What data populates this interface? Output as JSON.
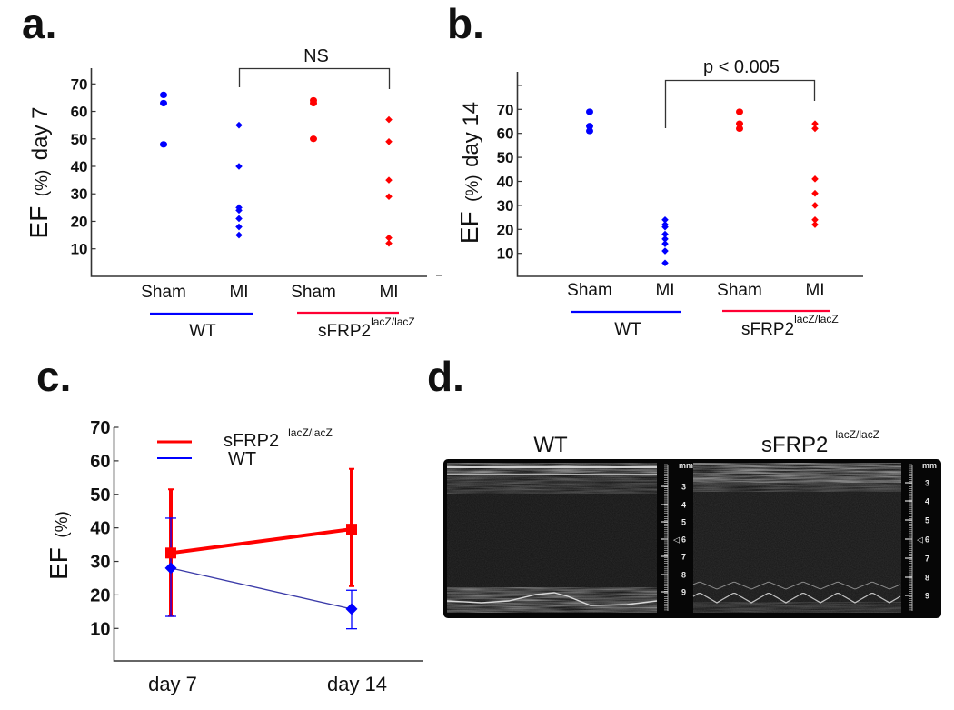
{
  "colors": {
    "wt": "#0000ff",
    "ko": "#ff0000",
    "axis": "#333333",
    "wt_line_c": "#3a3aa8"
  },
  "panels": {
    "a": {
      "letter": "a.",
      "ylabel_main": "EF",
      "ylabel_unit": "(%)",
      "ylabel_day": "day 7",
      "significance": "NS"
    },
    "b": {
      "letter": "b.",
      "ylabel_main": "EF",
      "ylabel_unit": "(%)",
      "ylabel_day": "day 14",
      "significance": "p < 0.005"
    },
    "c": {
      "letter": "c.",
      "ylabel_main": "EF",
      "ylabel_unit": "(%)"
    },
    "d": {
      "letter": "d.",
      "titles": [
        {
          "main": "WT",
          "sup": ""
        },
        {
          "main": "sFRP2",
          "sup": "lacZ/lacZ"
        }
      ],
      "ruler_unit": "mm",
      "ruler_labels": [
        "3",
        "4",
        "5",
        "6",
        "7",
        "8",
        "9"
      ],
      "ruler_marker": "◁"
    }
  },
  "groups": {
    "wt": {
      "label": "WT",
      "sup": ""
    },
    "ko": {
      "label": "sFRP2",
      "sup": "lacZ/lacZ"
    }
  },
  "chart_data": [
    {
      "id": "a",
      "type": "scatter",
      "title": "",
      "ylabel": "EF (%) day 7",
      "ylim": [
        0,
        75
      ],
      "yticks": [
        10,
        20,
        30,
        40,
        50,
        60,
        70
      ],
      "categories": [
        "Sham",
        "MI",
        "Sham",
        "MI"
      ],
      "category_groups": [
        "WT",
        "WT",
        "sFRP2 lacZ/lacZ",
        "sFRP2 lacZ/lacZ"
      ],
      "series": [
        {
          "name": "WT Sham",
          "color": "#0000ff",
          "marker": "circle",
          "category": 0,
          "values": [
            66,
            63,
            48
          ]
        },
        {
          "name": "WT MI",
          "color": "#0000ff",
          "marker": "diamond",
          "category": 1,
          "values": [
            55,
            40,
            25,
            24,
            21,
            18,
            15
          ]
        },
        {
          "name": "sFRP2 Sham",
          "color": "#ff0000",
          "marker": "circle",
          "category": 2,
          "values": [
            64,
            63,
            50
          ]
        },
        {
          "name": "sFRP2 MI",
          "color": "#ff0000",
          "marker": "diamond",
          "category": 3,
          "values": [
            57,
            49,
            35,
            29,
            14,
            12
          ]
        }
      ],
      "annotation": {
        "text": "NS",
        "from_category": 1,
        "to_category": 3
      }
    },
    {
      "id": "b",
      "type": "scatter",
      "title": "",
      "ylabel": "EF (%) day 14",
      "ylim": [
        0,
        85
      ],
      "yticks": [
        10,
        20,
        30,
        40,
        50,
        60,
        70
      ],
      "extra_unlabeled_ticks": [
        80
      ],
      "categories": [
        "Sham",
        "MI",
        "Sham",
        "MI"
      ],
      "category_groups": [
        "WT",
        "WT",
        "sFRP2 lacZ/lacZ",
        "sFRP2 lacZ/lacZ"
      ],
      "series": [
        {
          "name": "WT Sham",
          "color": "#0000ff",
          "marker": "circle",
          "category": 0,
          "values": [
            69,
            63,
            61
          ]
        },
        {
          "name": "WT MI",
          "color": "#0000ff",
          "marker": "diamond",
          "category": 1,
          "values": [
            24,
            22,
            21,
            18,
            16,
            14,
            11,
            6
          ]
        },
        {
          "name": "sFRP2 Sham",
          "color": "#ff0000",
          "marker": "circle",
          "category": 2,
          "values": [
            69,
            64,
            62
          ]
        },
        {
          "name": "sFRP2 MI",
          "color": "#ff0000",
          "marker": "diamond",
          "category": 3,
          "values": [
            64,
            62,
            41,
            35,
            30,
            24,
            22
          ]
        }
      ],
      "annotation": {
        "text": "p < 0.005",
        "from_category": 1,
        "to_category": 3
      }
    },
    {
      "id": "c",
      "type": "line",
      "title": "",
      "ylabel": "EF (%)",
      "ylim": [
        0,
        70
      ],
      "yticks": [
        10,
        20,
        30,
        40,
        50,
        60,
        70
      ],
      "categories": [
        "day 7",
        "day 14"
      ],
      "legend": "top-left",
      "series": [
        {
          "name": "sFRP2",
          "sup": "lacZ/lacZ",
          "color": "#ff0000",
          "marker": "square",
          "values": [
            32.5,
            39.6
          ],
          "err_low": [
            13.7,
            22.6
          ],
          "err_high": [
            51.5,
            57.6
          ]
        },
        {
          "name": "WT",
          "sup": "",
          "color": "#0000ff",
          "marker": "diamond",
          "values": [
            28,
            15.8
          ],
          "err_low": [
            13.6,
            9.9
          ],
          "err_high": [
            42.9,
            21.4
          ]
        }
      ]
    }
  ]
}
